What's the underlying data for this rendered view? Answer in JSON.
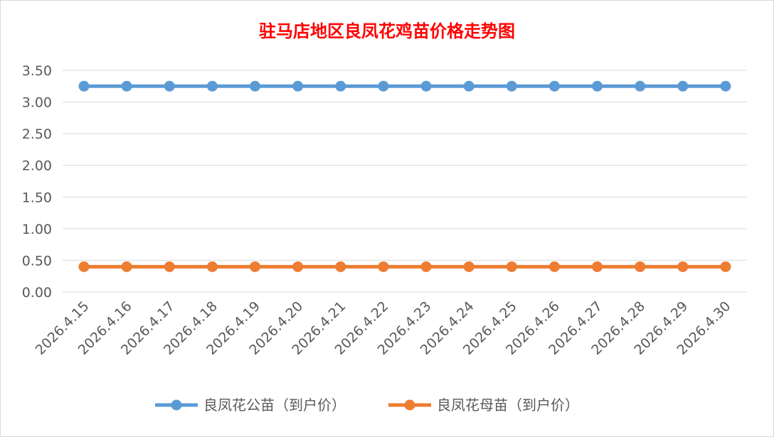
{
  "chart_data": {
    "type": "line",
    "title": "驻马店地区良凤花鸡苗价格走势图",
    "categories": [
      "2026.4.15",
      "2026.4.16",
      "2026.4.17",
      "2026.4.18",
      "2026.4.19",
      "2026.4.20",
      "2026.4.21",
      "2026.4.22",
      "2026.4.23",
      "2026.4.24",
      "2026.4.25",
      "2026.4.26",
      "2026.4.27",
      "2026.4.28",
      "2026.4.29",
      "2026.4.30"
    ],
    "yticks": [
      "0.00",
      "0.50",
      "1.00",
      "1.50",
      "2.00",
      "2.50",
      "3.00",
      "3.50"
    ],
    "ylim": [
      0,
      3.5
    ],
    "grid": true,
    "legend_position": "bottom",
    "series": [
      {
        "name": "良凤花公苗（到户价）",
        "color": "#5b9bd5",
        "values": [
          3.25,
          3.25,
          3.25,
          3.25,
          3.25,
          3.25,
          3.25,
          3.25,
          3.25,
          3.25,
          3.25,
          3.25,
          3.25,
          3.25,
          3.25,
          3.25
        ]
      },
      {
        "name": "良凤花母苗（到户价）",
        "color": "#ed7d31",
        "values": [
          0.4,
          0.4,
          0.4,
          0.4,
          0.4,
          0.4,
          0.4,
          0.4,
          0.4,
          0.4,
          0.4,
          0.4,
          0.4,
          0.4,
          0.4,
          0.4
        ]
      }
    ]
  }
}
